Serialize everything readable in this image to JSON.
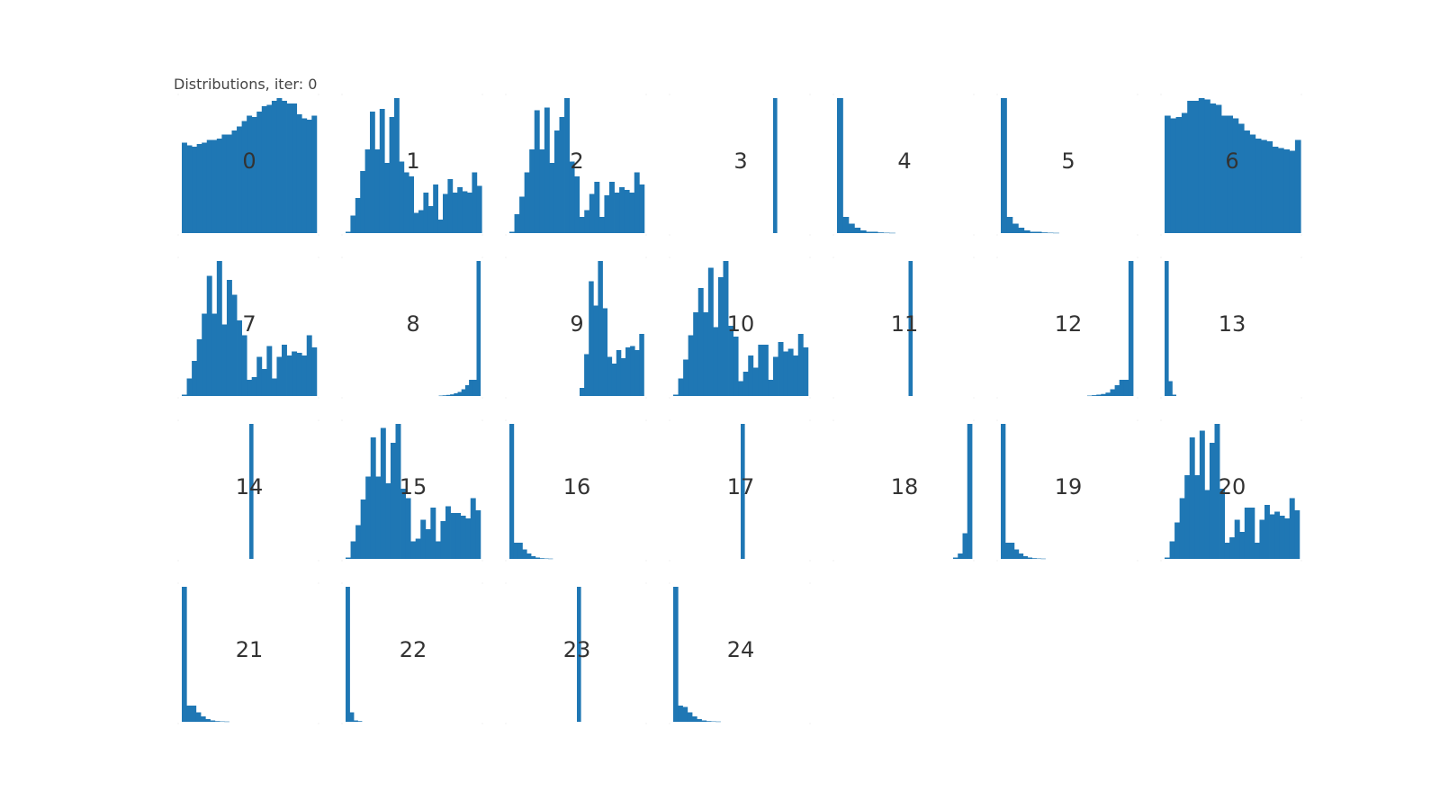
{
  "figure": {
    "title": "Distributions, iter: 0",
    "bar_color": "#1f77b4",
    "background": "#ffffff"
  },
  "chart_data": [
    {
      "type": "bar",
      "title": "0",
      "grid": false,
      "values": [
        0.67,
        0.65,
        0.64,
        0.66,
        0.67,
        0.69,
        0.69,
        0.7,
        0.73,
        0.73,
        0.76,
        0.79,
        0.83,
        0.87,
        0.86,
        0.9,
        0.94,
        0.95,
        0.98,
        1.0,
        0.98,
        0.96,
        0.96,
        0.88,
        0.85,
        0.84,
        0.87
      ]
    },
    {
      "type": "bar",
      "title": "1",
      "grid": false,
      "values": [
        0.01,
        0.13,
        0.26,
        0.46,
        0.62,
        0.9,
        0.62,
        0.92,
        0.52,
        0.86,
        1.0,
        0.53,
        0.45,
        0.42,
        0.15,
        0.17,
        0.3,
        0.2,
        0.36,
        0.1,
        0.29,
        0.4,
        0.3,
        0.34,
        0.31,
        0.3,
        0.45,
        0.35
      ]
    },
    {
      "type": "bar",
      "title": "2",
      "grid": false,
      "values": [
        0.01,
        0.14,
        0.27,
        0.45,
        0.62,
        0.91,
        0.62,
        0.93,
        0.52,
        0.76,
        0.86,
        1.0,
        0.53,
        0.42,
        0.12,
        0.17,
        0.29,
        0.38,
        0.12,
        0.28,
        0.38,
        0.3,
        0.34,
        0.32,
        0.3,
        0.45,
        0.36
      ]
    },
    {
      "type": "bar",
      "title": "3",
      "grid": false,
      "values": [
        1.0
      ]
    },
    {
      "type": "bar",
      "title": "4",
      "grid": false,
      "values": [
        1.0,
        0.12,
        0.07,
        0.04,
        0.02,
        0.01,
        0.01,
        0.005,
        0.003,
        0.002
      ]
    },
    {
      "type": "bar",
      "title": "5",
      "grid": false,
      "values": [
        1.0,
        0.12,
        0.07,
        0.04,
        0.02,
        0.01,
        0.01,
        0.005,
        0.003,
        0.002
      ]
    },
    {
      "type": "bar",
      "title": "6",
      "grid": false,
      "values": [
        0.87,
        0.85,
        0.86,
        0.89,
        0.98,
        0.98,
        1.0,
        0.99,
        0.96,
        0.95,
        0.87,
        0.87,
        0.85,
        0.81,
        0.76,
        0.73,
        0.7,
        0.69,
        0.68,
        0.64,
        0.63,
        0.62,
        0.61,
        0.69
      ]
    },
    {
      "type": "bar",
      "title": "7",
      "grid": false,
      "values": [
        0.01,
        0.13,
        0.26,
        0.42,
        0.61,
        0.89,
        0.61,
        1.0,
        0.53,
        0.86,
        0.75,
        0.56,
        0.45,
        0.12,
        0.14,
        0.29,
        0.2,
        0.37,
        0.13,
        0.29,
        0.38,
        0.3,
        0.33,
        0.32,
        0.3,
        0.45,
        0.36
      ]
    },
    {
      "type": "bar",
      "title": "8",
      "grid": false,
      "values": [
        0.003,
        0.005,
        0.008,
        0.012,
        0.02,
        0.03,
        0.05,
        0.08,
        0.12,
        0.12,
        1.0
      ]
    },
    {
      "type": "bar",
      "title": "9",
      "grid": false,
      "values": [
        0.06,
        0.31,
        0.85,
        0.67,
        1.0,
        0.65,
        0.29,
        0.24,
        0.34,
        0.28,
        0.36,
        0.37,
        0.34,
        0.46
      ]
    },
    {
      "type": "bar",
      "title": "10",
      "grid": false,
      "values": [
        0.01,
        0.13,
        0.27,
        0.45,
        0.62,
        0.8,
        0.62,
        0.95,
        0.51,
        0.88,
        1.0,
        0.52,
        0.44,
        0.11,
        0.18,
        0.3,
        0.21,
        0.38,
        0.38,
        0.12,
        0.29,
        0.4,
        0.33,
        0.35,
        0.3,
        0.46,
        0.36
      ]
    },
    {
      "type": "bar",
      "title": "11",
      "grid": false,
      "values": [
        1.0
      ]
    },
    {
      "type": "bar",
      "title": "12",
      "grid": false,
      "values": [
        0.003,
        0.006,
        0.01,
        0.015,
        0.025,
        0.05,
        0.08,
        0.12,
        0.12,
        1.0
      ]
    },
    {
      "type": "bar",
      "title": "13",
      "grid": false,
      "values": [
        1.0,
        0.11,
        0.01
      ]
    },
    {
      "type": "bar",
      "title": "14",
      "grid": false,
      "values": [
        1.0
      ]
    },
    {
      "type": "bar",
      "title": "15",
      "grid": false,
      "values": [
        0.01,
        0.13,
        0.25,
        0.44,
        0.61,
        0.9,
        0.61,
        0.97,
        0.56,
        0.86,
        1.0,
        0.52,
        0.45,
        0.13,
        0.15,
        0.29,
        0.22,
        0.38,
        0.13,
        0.28,
        0.39,
        0.34,
        0.34,
        0.32,
        0.3,
        0.45,
        0.36
      ]
    },
    {
      "type": "bar",
      "title": "16",
      "grid": false,
      "values": [
        1.0,
        0.12,
        0.12,
        0.07,
        0.04,
        0.02,
        0.01,
        0.005,
        0.003,
        0.002
      ]
    },
    {
      "type": "bar",
      "title": "17",
      "grid": false,
      "values": [
        1.0
      ]
    },
    {
      "type": "bar",
      "title": "18",
      "grid": false,
      "values": [
        0.01,
        0.04,
        0.19,
        1.0
      ]
    },
    {
      "type": "bar",
      "title": "19",
      "grid": false,
      "values": [
        1.0,
        0.12,
        0.12,
        0.07,
        0.04,
        0.02,
        0.01,
        0.005,
        0.003,
        0.002
      ]
    },
    {
      "type": "bar",
      "title": "20",
      "grid": false,
      "values": [
        0.01,
        0.13,
        0.27,
        0.45,
        0.62,
        0.9,
        0.62,
        0.95,
        0.51,
        0.86,
        1.0,
        0.52,
        0.12,
        0.16,
        0.29,
        0.2,
        0.38,
        0.38,
        0.12,
        0.29,
        0.4,
        0.33,
        0.35,
        0.32,
        0.3,
        0.45,
        0.36
      ]
    },
    {
      "type": "bar",
      "title": "21",
      "grid": false,
      "values": [
        1.0,
        0.12,
        0.12,
        0.07,
        0.04,
        0.02,
        0.01,
        0.005,
        0.003,
        0.002
      ]
    },
    {
      "type": "bar",
      "title": "22",
      "grid": false,
      "values": [
        1.0,
        0.07,
        0.01,
        0.005
      ]
    },
    {
      "type": "bar",
      "title": "23",
      "grid": false,
      "values": [
        1.0
      ]
    },
    {
      "type": "bar",
      "title": "24",
      "grid": false,
      "values": [
        1.0,
        0.12,
        0.11,
        0.07,
        0.04,
        0.02,
        0.01,
        0.005,
        0.003,
        0.002
      ]
    }
  ]
}
